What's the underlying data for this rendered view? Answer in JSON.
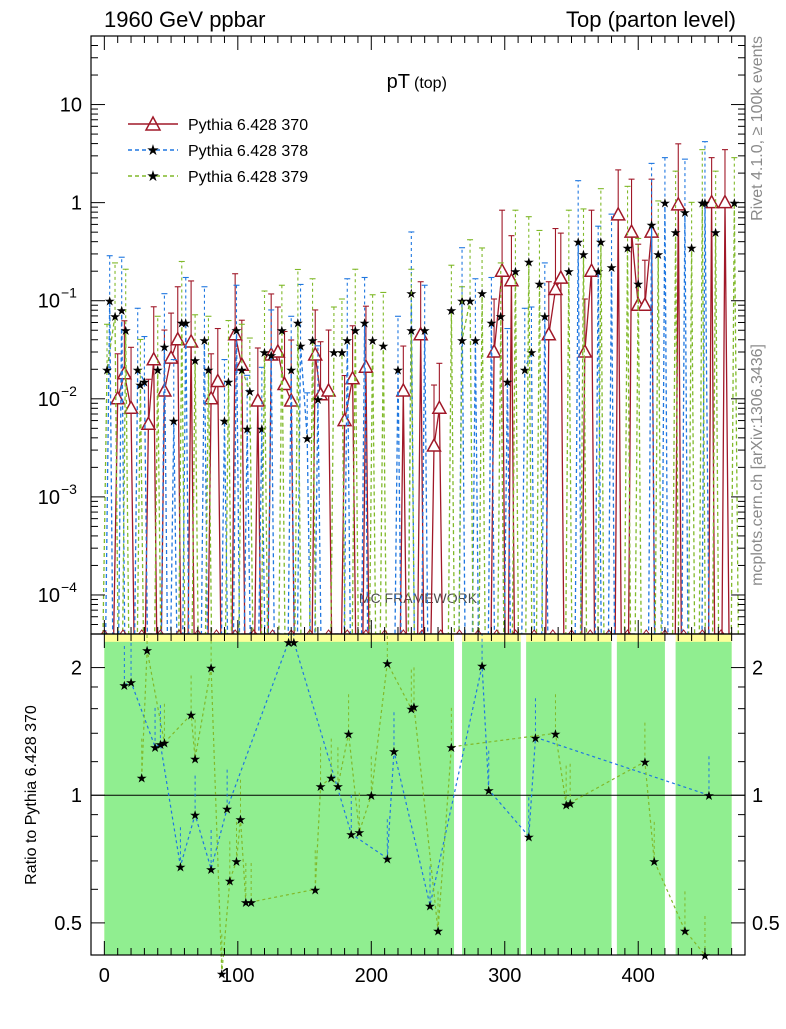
{
  "header": {
    "left": "1960 GeV ppbar",
    "right": "Top (parton level)"
  },
  "side_labels": {
    "rivet": "Rivet 4.1.0, ≥ 100k events",
    "mcplots": "mcplots.cern.ch [arXiv:1306.3436]"
  },
  "watermark": "MC FRAMEWORK",
  "colors": {
    "s370": "#a01828",
    "s378": "#1f77e0",
    "s379": "#80b92a",
    "band_green": "#90ee90",
    "band_yellow": "#ffff99"
  },
  "chart_data": [
    {
      "type": "line",
      "panel": "main",
      "title": "pT",
      "title_sub": "(top)",
      "xlabel": "",
      "ylabel": "",
      "yscale": "log",
      "xlim": [
        -10,
        480
      ],
      "ylim": [
        4e-05,
        50
      ],
      "x_ticks": [
        0,
        100,
        200,
        300,
        400
      ],
      "y_ticks": [
        {
          "value": 10,
          "label": "10"
        },
        {
          "value": 1,
          "label": "1"
        },
        {
          "value": 0.1,
          "label": "10",
          "exp": "−1"
        },
        {
          "value": 0.01,
          "label": "10",
          "exp": "−2"
        },
        {
          "value": 0.001,
          "label": "10",
          "exp": "−3"
        },
        {
          "value": 0.0001,
          "label": "10",
          "exp": "−4"
        }
      ],
      "legend_position": "top-left",
      "series": [
        {
          "name": "Pythia 6.428 370",
          "marker": "triangle",
          "style": "solid",
          "color_key": "s370",
          "points": [
            [
              10,
              0.01
            ],
            [
              15,
              0.018
            ],
            [
              20,
              0.008
            ],
            [
              33,
              0.0055
            ],
            [
              37,
              0.025
            ],
            [
              45,
              0.012
            ],
            [
              50,
              0.026
            ],
            [
              55,
              0.04
            ],
            [
              65,
              0.038
            ],
            [
              80,
              0.01
            ],
            [
              85,
              0.015
            ],
            [
              98,
              0.045
            ],
            [
              103,
              0.022
            ],
            [
              115,
              0.0095
            ],
            [
              125,
              0.028
            ],
            [
              130,
              0.03
            ],
            [
              135,
              0.014
            ],
            [
              140,
              0.0095
            ],
            [
              158,
              0.028
            ],
            [
              162,
              0.011
            ],
            [
              168,
              0.012
            ],
            [
              180,
              0.006
            ],
            [
              186,
              0.016
            ],
            [
              196,
              0.021
            ],
            [
              224,
              0.012
            ],
            [
              237,
              0.045
            ],
            [
              247,
              0.0033
            ],
            [
              251,
              0.008
            ],
            [
              292,
              0.03
            ],
            [
              298,
              0.2
            ],
            [
              305,
              0.16
            ],
            [
              333,
              0.045
            ],
            [
              338,
              0.13
            ],
            [
              342,
              0.17
            ],
            [
              360,
              0.03
            ],
            [
              365,
              0.2
            ],
            [
              385,
              0.75
            ],
            [
              395,
              0.5
            ],
            [
              400,
              0.09
            ],
            [
              405,
              0.09
            ],
            [
              410,
              0.5
            ],
            [
              430,
              0.95
            ],
            [
              455,
              1.0
            ],
            [
              465,
              1.0
            ]
          ]
        },
        {
          "name": "Pythia 6.428 378",
          "marker": "star",
          "style": "dashed",
          "color_key": "s378",
          "points": [
            [
              4,
              0.1
            ],
            [
              13,
              0.08
            ],
            [
              25,
              0.02
            ],
            [
              30,
              0.015
            ],
            [
              45,
              0.034
            ],
            [
              52,
              0.006
            ],
            [
              61,
              0.06
            ],
            [
              75,
              0.04
            ],
            [
              90,
              0.006
            ],
            [
              99,
              0.05
            ],
            [
              107,
              0.005
            ],
            [
              118,
              0.005
            ],
            [
              125,
              0.028
            ],
            [
              140,
              0.02
            ],
            [
              147,
              0.035
            ],
            [
              152,
              0.004
            ],
            [
              160,
              0.01
            ],
            [
              182,
              0.04
            ],
            [
              195,
              0.06
            ],
            [
              220,
              0.02
            ],
            [
              230,
              0.12
            ],
            [
              240,
              0.05
            ],
            [
              268,
              0.1
            ],
            [
              278,
              0.04
            ],
            [
              290,
              0.06
            ],
            [
              302,
              0.015
            ],
            [
              315,
              0.02
            ],
            [
              320,
              0.03
            ],
            [
              330,
              0.07
            ],
            [
              355,
              0.4
            ],
            [
              370,
              0.2
            ],
            [
              380,
              0.22
            ],
            [
              410,
              0.6
            ],
            [
              420,
              1.0
            ],
            [
              435,
              0.8
            ],
            [
              450,
              1.0
            ]
          ]
        },
        {
          "name": "Pythia 6.428 379",
          "marker": "star",
          "style": "dashed",
          "color_key": "s379",
          "points": [
            [
              2,
              0.02
            ],
            [
              8,
              0.07
            ],
            [
              16,
              0.05
            ],
            [
              27,
              0.014
            ],
            [
              40,
              0.02
            ],
            [
              58,
              0.06
            ],
            [
              68,
              0.025
            ],
            [
              78,
              0.02
            ],
            [
              93,
              0.015
            ],
            [
              103,
              0.02
            ],
            [
              109,
              0.012
            ],
            [
              120,
              0.03
            ],
            [
              133,
              0.05
            ],
            [
              145,
              0.06
            ],
            [
              156,
              0.04
            ],
            [
              172,
              0.03
            ],
            [
              178,
              0.03
            ],
            [
              188,
              0.05
            ],
            [
              201,
              0.04
            ],
            [
              209,
              0.035
            ],
            [
              230,
              0.05
            ],
            [
              260,
              0.08
            ],
            [
              268,
              0.04
            ],
            [
              274,
              0.1
            ],
            [
              283,
              0.12
            ],
            [
              297,
              0.07
            ],
            [
              308,
              0.2
            ],
            [
              318,
              0.25
            ],
            [
              326,
              0.15
            ],
            [
              348,
              0.2
            ],
            [
              359,
              0.3
            ],
            [
              372,
              0.4
            ],
            [
              392,
              0.35
            ],
            [
              400,
              0.15
            ],
            [
              415,
              0.3
            ],
            [
              428,
              0.5
            ],
            [
              440,
              0.35
            ],
            [
              448,
              1.0
            ],
            [
              458,
              0.5
            ],
            [
              472,
              1.0
            ]
          ]
        }
      ]
    },
    {
      "type": "line",
      "panel": "ratio",
      "title": "",
      "xlabel": "",
      "ylabel": "Ratio to Pythia 6.428 370",
      "yscale": "log",
      "xlim": [
        -10,
        480
      ],
      "ylim": [
        0.42,
        2.4
      ],
      "reference_line": 1,
      "x_ticks": [
        0,
        100,
        200,
        300,
        400
      ],
      "y_ticks": [
        {
          "value": 0.5,
          "label": "0.5"
        },
        {
          "value": 1,
          "label": "1"
        },
        {
          "value": 2,
          "label": "2"
        }
      ],
      "uncertainty_bands": {
        "x_range": [
          0,
          470
        ],
        "green_top": 2.3,
        "yellow_top": 2.4,
        "gaps": [
          [
            262,
            268
          ],
          [
            312,
            316
          ],
          [
            380,
            384
          ],
          [
            420,
            428
          ]
        ]
      },
      "series": [
        {
          "name": "Pythia 6.428 378",
          "marker": "star",
          "color_key": "s378",
          "points": [
            [
              15,
              1.82
            ],
            [
              20,
              1.85
            ],
            [
              38,
              1.3
            ],
            [
              42,
              1.32
            ],
            [
              57,
              0.68
            ],
            [
              68,
              0.9
            ],
            [
              80,
              0.67
            ],
            [
              92,
              0.93
            ],
            [
              138,
              2.3
            ],
            [
              142,
              2.3
            ],
            [
              185,
              0.81
            ],
            [
              212,
              0.71
            ],
            [
              217,
              1.27
            ],
            [
              244,
              0.55
            ],
            [
              283,
              2.02
            ],
            [
              288,
              1.03
            ],
            [
              318,
              0.8
            ],
            [
              323,
              1.37
            ],
            [
              453,
              1.0
            ]
          ]
        },
        {
          "name": "Pythia 6.428 379",
          "marker": "star",
          "color_key": "s379",
          "points": [
            [
              28,
              1.1
            ],
            [
              32,
              2.2
            ],
            [
              45,
              1.33
            ],
            [
              65,
              1.55
            ],
            [
              68,
              1.22
            ],
            [
              80,
              2.0
            ],
            [
              88,
              0.38
            ],
            [
              94,
              0.63
            ],
            [
              99,
              0.7
            ],
            [
              102,
              0.88
            ],
            [
              106,
              0.56
            ],
            [
              110,
              0.56
            ],
            [
              158,
              0.6
            ],
            [
              162,
              1.05
            ],
            [
              170,
              1.1
            ],
            [
              175,
              1.05
            ],
            [
              183,
              1.4
            ],
            [
              191,
              0.82
            ],
            [
              200,
              1.0
            ],
            [
              212,
              2.05
            ],
            [
              230,
              1.6
            ],
            [
              232,
              1.62
            ],
            [
              250,
              0.48
            ],
            [
              260,
              1.3
            ],
            [
              338,
              1.4
            ],
            [
              346,
              0.95
            ],
            [
              349,
              0.96
            ],
            [
              405,
              1.2
            ],
            [
              412,
              0.7
            ],
            [
              435,
              0.48
            ],
            [
              450,
              0.42
            ]
          ]
        }
      ]
    }
  ],
  "sample_mc": "MC"
}
